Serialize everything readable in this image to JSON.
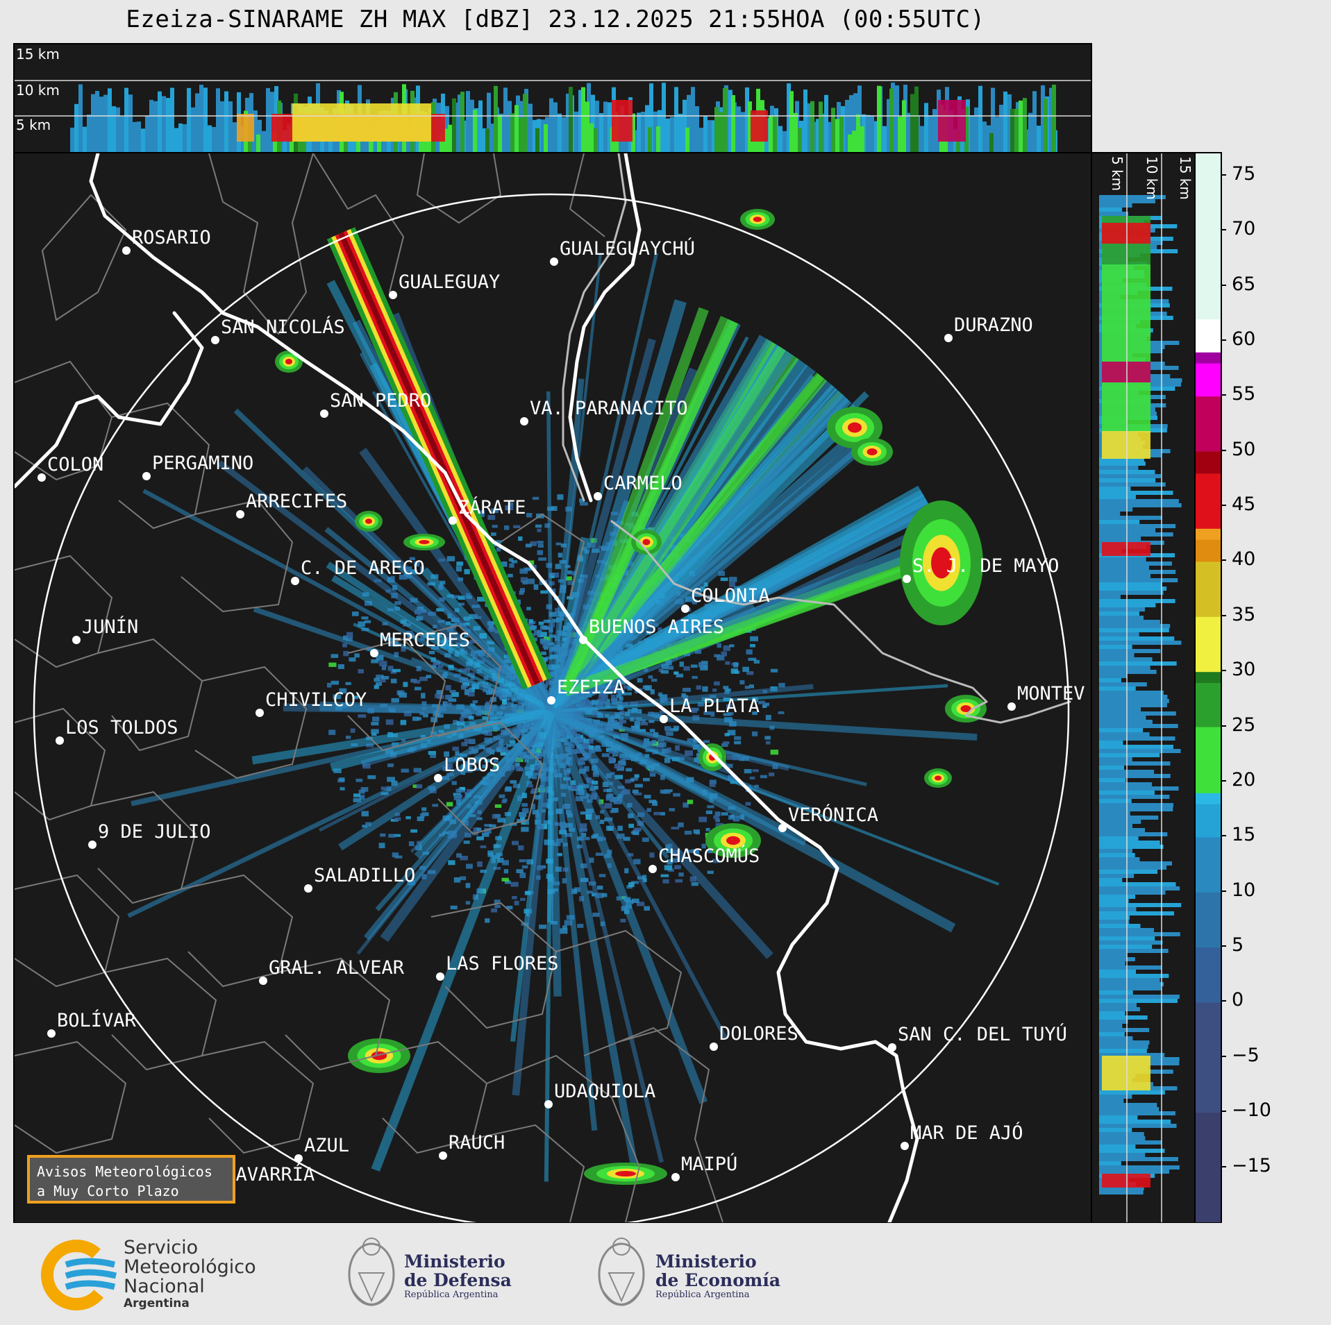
{
  "title": "Ezeiza-SINARAME ZH MAX [dBZ] 23.12.2025 21:55HOA (00:55UTC)",
  "xsec_top_labels": [
    "15 km",
    "10 km",
    "5 km"
  ],
  "xsec_right_labels": [
    "5 km",
    "10 km",
    "15 km"
  ],
  "colorbar": {
    "ticks": [
      "75",
      "70",
      "65",
      "60",
      "55",
      "50",
      "45",
      "40",
      "35",
      "30",
      "25",
      "20",
      "15",
      "10",
      "5",
      "0",
      "−5",
      "−10",
      "−15"
    ],
    "range": [
      -20,
      77
    ]
  },
  "cities": [
    {
      "name": "ROSARIO"
    },
    {
      "name": "GUALEGUAYCHÚ"
    },
    {
      "name": "GUALEGUAY"
    },
    {
      "name": "SAN NICOLÁS"
    },
    {
      "name": "DURAZNO"
    },
    {
      "name": "SAN PEDRO"
    },
    {
      "name": "VA. PARANACITO"
    },
    {
      "name": "COLON"
    },
    {
      "name": "PERGAMINO"
    },
    {
      "name": "CARMELO"
    },
    {
      "name": "ARRECIFES"
    },
    {
      "name": "ZÁRATE"
    },
    {
      "name": "S. J. DE MAYO"
    },
    {
      "name": "C. DE ARECO"
    },
    {
      "name": "COLONIA"
    },
    {
      "name": "JUNÍN"
    },
    {
      "name": "BUENOS AIRES"
    },
    {
      "name": "MERCEDES"
    },
    {
      "name": "EZEIZA"
    },
    {
      "name": "MONTEV"
    },
    {
      "name": "CHIVILCOY"
    },
    {
      "name": "LA PLATA"
    },
    {
      "name": "LOS TOLDOS"
    },
    {
      "name": "LOBOS"
    },
    {
      "name": "VERÓNICA"
    },
    {
      "name": "9 DE JULIO"
    },
    {
      "name": "CHASCOMÚS"
    },
    {
      "name": "SALADILLO"
    },
    {
      "name": "GRAL. ALVEAR"
    },
    {
      "name": "LAS FLORES"
    },
    {
      "name": "BOLÍVAR"
    },
    {
      "name": "DOLORES"
    },
    {
      "name": "SAN C. DEL TUYÚ"
    },
    {
      "name": "UDAQUIOLA"
    },
    {
      "name": "MAR DE AJÓ"
    },
    {
      "name": "AZUL"
    },
    {
      "name": "RAUCH"
    },
    {
      "name": "MAIPÚ"
    },
    {
      "name": "OLAVARRÍA"
    }
  ],
  "aviso": {
    "line1": "Avisos Meteorológicos",
    "line2": "a Muy Corto Plazo"
  },
  "footer": {
    "smn_line1": "Servicio",
    "smn_line2": "Meteorológico",
    "smn_line3": "Nacional",
    "smn_line4": "Argentina",
    "defensa_line1": "Ministerio",
    "defensa_line2": "de Defensa",
    "defensa_line3": "República Argentina",
    "economia_line1": "Ministerio",
    "economia_line2": "de Economía",
    "economia_line3": "República Argentina"
  }
}
